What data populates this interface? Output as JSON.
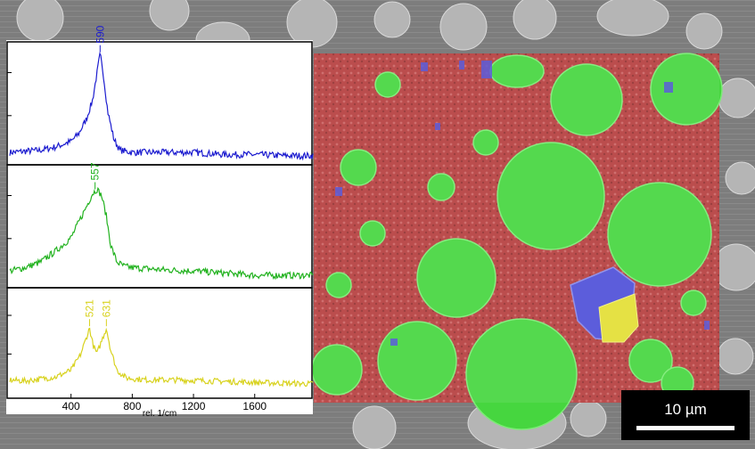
{
  "chart_data": [
    {
      "type": "line",
      "series": [
        {
          "x": [
            0,
            100,
            200,
            300,
            400,
            450,
            500,
            540,
            570,
            590,
            610,
            640,
            680,
            720,
            800,
            1000,
            1200,
            1400,
            1600,
            1800,
            1980
          ],
          "y": [
            0.08,
            0.09,
            0.1,
            0.13,
            0.18,
            0.25,
            0.38,
            0.55,
            0.8,
            0.97,
            0.8,
            0.45,
            0.2,
            0.1,
            0.08,
            0.08,
            0.08,
            0.06,
            0.06,
            0.05,
            0.05
          ]
        }
      ],
      "peak_labels": [
        {
          "x": 590,
          "label": "590"
        }
      ],
      "color": "#1c1ccf",
      "xlim": [
        0,
        1980
      ],
      "ylim": [
        0,
        1
      ]
    },
    {
      "type": "line",
      "series": [
        {
          "x": [
            0,
            100,
            200,
            300,
            400,
            450,
            500,
            540,
            570,
            600,
            630,
            660,
            700,
            750,
            800,
            1000,
            1200,
            1400,
            1600,
            1800,
            1980
          ],
          "y": [
            0.12,
            0.15,
            0.2,
            0.3,
            0.42,
            0.56,
            0.7,
            0.82,
            0.86,
            0.8,
            0.62,
            0.35,
            0.2,
            0.16,
            0.15,
            0.13,
            0.12,
            0.1,
            0.08,
            0.08,
            0.08
          ]
        }
      ],
      "peak_labels": [
        {
          "x": 557,
          "label": "557"
        }
      ],
      "color": "#22b21f",
      "xlim": [
        0,
        1980
      ],
      "ylim": [
        0,
        1
      ]
    },
    {
      "type": "line",
      "series": [
        {
          "x": [
            0,
            100,
            200,
            300,
            400,
            460,
            500,
            521,
            545,
            570,
            600,
            631,
            660,
            700,
            760,
            900,
            1100,
            1300,
            1500,
            1700,
            1980
          ],
          "y": [
            0.15,
            0.14,
            0.16,
            0.18,
            0.25,
            0.4,
            0.58,
            0.68,
            0.5,
            0.42,
            0.55,
            0.68,
            0.45,
            0.25,
            0.17,
            0.15,
            0.15,
            0.14,
            0.13,
            0.12,
            0.11
          ]
        }
      ],
      "peak_labels": [
        {
          "x": 521,
          "label": "521"
        },
        {
          "x": 631,
          "label": "631"
        }
      ],
      "color": "#d8d21e",
      "xlim": [
        0,
        1980
      ],
      "ylim": [
        0,
        1
      ],
      "xticks": [
        400,
        800,
        1200,
        1600
      ],
      "xlabel": "rel. 1/cm"
    }
  ],
  "scalebar": {
    "label": "10 µm"
  },
  "overlay_colors": {
    "matrix": "#d23d3d",
    "grains": "#3fd93a",
    "blue_phase": "#4e4fd6",
    "yellow_phase": "#e0dc3a"
  }
}
